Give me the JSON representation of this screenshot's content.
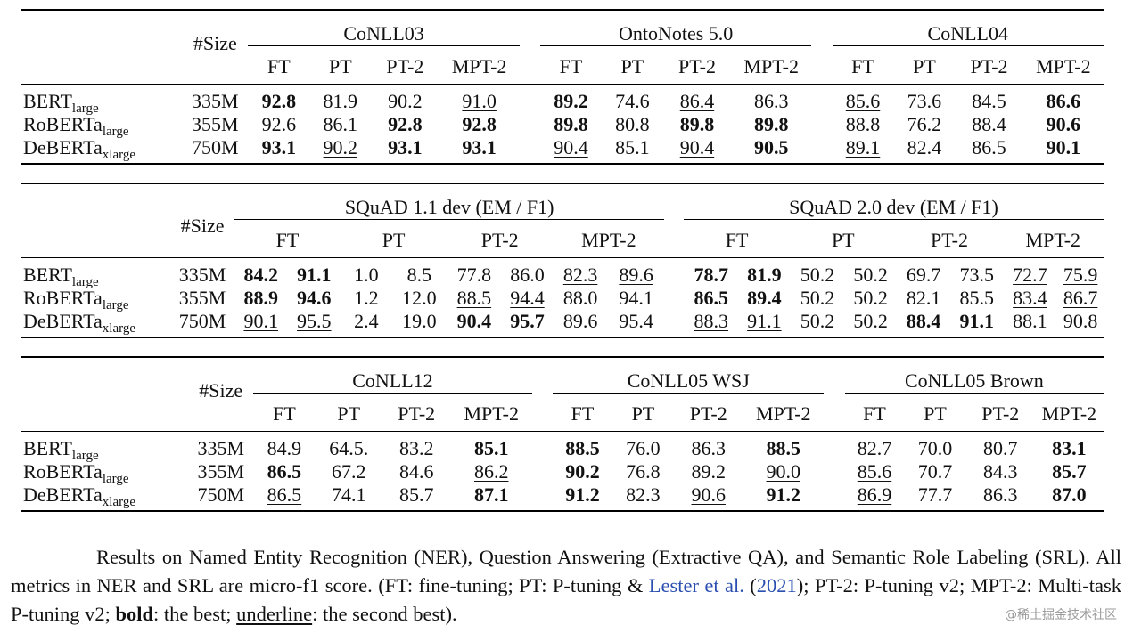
{
  "tables": [
    {
      "id": "ner",
      "size_header": "#Size",
      "groups": [
        "CoNLL03",
        "OntoNotes 5.0",
        "CoNLL04"
      ],
      "subheaders": [
        "FT",
        "PT",
        "PT-2",
        "MPT-2",
        "FT",
        "PT",
        "PT-2",
        "MPT-2",
        "FT",
        "PT",
        "PT-2",
        "MPT-2"
      ],
      "rows": [
        {
          "model": "BERT",
          "sub": "large",
          "size": "335M",
          "cells": [
            [
              "92.8",
              "b"
            ],
            [
              "81.9",
              ""
            ],
            [
              "90.2",
              ""
            ],
            [
              "91.0",
              "u"
            ],
            [
              "89.2",
              "b"
            ],
            [
              "74.6",
              ""
            ],
            [
              "86.4",
              "u"
            ],
            [
              "86.3",
              ""
            ],
            [
              "85.6",
              "u"
            ],
            [
              "73.6",
              ""
            ],
            [
              "84.5",
              ""
            ],
            [
              "86.6",
              "b"
            ]
          ]
        },
        {
          "model": "RoBERTa",
          "sub": "large",
          "size": "355M",
          "cells": [
            [
              "92.6",
              "u"
            ],
            [
              "86.1",
              ""
            ],
            [
              "92.8",
              "b"
            ],
            [
              "92.8",
              "b"
            ],
            [
              "89.8",
              "b"
            ],
            [
              "80.8",
              "u"
            ],
            [
              "89.8",
              "b"
            ],
            [
              "89.8",
              "b"
            ],
            [
              "88.8",
              "u"
            ],
            [
              "76.2",
              ""
            ],
            [
              "88.4",
              ""
            ],
            [
              "90.6",
              "b"
            ]
          ]
        },
        {
          "model": "DeBERTa",
          "sub": "xlarge",
          "size": "750M",
          "cells": [
            [
              "93.1",
              "b"
            ],
            [
              "90.2",
              "u"
            ],
            [
              "93.1",
              "b"
            ],
            [
              "93.1",
              "b"
            ],
            [
              "90.4",
              "u"
            ],
            [
              "85.1",
              ""
            ],
            [
              "90.4",
              "u"
            ],
            [
              "90.5",
              "b"
            ],
            [
              "89.1",
              "u"
            ],
            [
              "82.4",
              ""
            ],
            [
              "86.5",
              ""
            ],
            [
              "90.1",
              "b"
            ]
          ]
        }
      ]
    },
    {
      "id": "qa",
      "size_header": "#Size",
      "groups": [
        "SQuAD 1.1 dev (EM / F1)",
        "SQuAD 2.0 dev (EM / F1)"
      ],
      "subheaders": [
        "FT",
        "PT",
        "PT-2",
        "MPT-2",
        "FT",
        "PT",
        "PT-2",
        "MPT-2"
      ],
      "rows": [
        {
          "model": "BERT",
          "sub": "large",
          "size": "335M",
          "cells": [
            [
              "84.2",
              "b"
            ],
            [
              "91.1",
              "b"
            ],
            [
              "1.0",
              ""
            ],
            [
              "8.5",
              ""
            ],
            [
              "77.8",
              ""
            ],
            [
              "86.0",
              ""
            ],
            [
              "82.3",
              "u"
            ],
            [
              "89.6",
              "u"
            ],
            [
              "78.7",
              "b"
            ],
            [
              "81.9",
              "b"
            ],
            [
              "50.2",
              ""
            ],
            [
              "50.2",
              ""
            ],
            [
              "69.7",
              ""
            ],
            [
              "73.5",
              ""
            ],
            [
              "72.7",
              "u"
            ],
            [
              "75.9",
              "u"
            ]
          ]
        },
        {
          "model": "RoBERTa",
          "sub": "large",
          "size": "355M",
          "cells": [
            [
              "88.9",
              "b"
            ],
            [
              "94.6",
              "b"
            ],
            [
              "1.2",
              ""
            ],
            [
              "12.0",
              ""
            ],
            [
              "88.5",
              "u"
            ],
            [
              "94.4",
              "u"
            ],
            [
              "88.0",
              ""
            ],
            [
              "94.1",
              ""
            ],
            [
              "86.5",
              "b"
            ],
            [
              "89.4",
              "b"
            ],
            [
              "50.2",
              ""
            ],
            [
              "50.2",
              ""
            ],
            [
              "82.1",
              ""
            ],
            [
              "85.5",
              ""
            ],
            [
              "83.4",
              "u"
            ],
            [
              "86.7",
              "u"
            ]
          ]
        },
        {
          "model": "DeBERTa",
          "sub": "xlarge",
          "size": "750M",
          "cells": [
            [
              "90.1",
              "u"
            ],
            [
              "95.5",
              "u"
            ],
            [
              "2.4",
              ""
            ],
            [
              "19.0",
              ""
            ],
            [
              "90.4",
              "b"
            ],
            [
              "95.7",
              "b"
            ],
            [
              "89.6",
              ""
            ],
            [
              "95.4",
              ""
            ],
            [
              "88.3",
              "u"
            ],
            [
              "91.1",
              "u"
            ],
            [
              "50.2",
              ""
            ],
            [
              "50.2",
              ""
            ],
            [
              "88.4",
              "b"
            ],
            [
              "91.1",
              "b"
            ],
            [
              "88.1",
              ""
            ],
            [
              "90.8",
              ""
            ]
          ]
        }
      ]
    },
    {
      "id": "srl",
      "size_header": "#Size",
      "groups": [
        "CoNLL12",
        "CoNLL05 WSJ",
        "CoNLL05 Brown"
      ],
      "subheaders": [
        "FT",
        "PT",
        "PT-2",
        "MPT-2",
        "FT",
        "PT",
        "PT-2",
        "MPT-2",
        "FT",
        "PT",
        "PT-2",
        "MPT-2"
      ],
      "rows": [
        {
          "model": "BERT",
          "sub": "large",
          "size": "335M",
          "cells": [
            [
              "84.9",
              "u"
            ],
            [
              "64.5.",
              ""
            ],
            [
              "83.2",
              ""
            ],
            [
              "85.1",
              "b"
            ],
            [
              "88.5",
              "b"
            ],
            [
              "76.0",
              ""
            ],
            [
              "86.3",
              "u"
            ],
            [
              "88.5",
              "b"
            ],
            [
              "82.7",
              "u"
            ],
            [
              "70.0",
              ""
            ],
            [
              "80.7",
              ""
            ],
            [
              "83.1",
              "b"
            ]
          ]
        },
        {
          "model": "RoBERTa",
          "sub": "large",
          "size": "355M",
          "cells": [
            [
              "86.5",
              "b"
            ],
            [
              "67.2",
              ""
            ],
            [
              "84.6",
              ""
            ],
            [
              "86.2",
              "u"
            ],
            [
              "90.2",
              "b"
            ],
            [
              "76.8",
              ""
            ],
            [
              "89.2",
              ""
            ],
            [
              "90.0",
              "u"
            ],
            [
              "85.6",
              "u"
            ],
            [
              "70.7",
              ""
            ],
            [
              "84.3",
              ""
            ],
            [
              "85.7",
              "b"
            ]
          ]
        },
        {
          "model": "DeBERTa",
          "sub": "xlarge",
          "size": "750M",
          "cells": [
            [
              "86.5",
              "u"
            ],
            [
              "74.1",
              ""
            ],
            [
              "85.7",
              ""
            ],
            [
              "87.1",
              "b"
            ],
            [
              "91.2",
              "b"
            ],
            [
              "82.3",
              ""
            ],
            [
              "90.6",
              "u"
            ],
            [
              "91.2",
              "b"
            ],
            [
              "86.9",
              "u"
            ],
            [
              "77.7",
              ""
            ],
            [
              "86.3",
              ""
            ],
            [
              "87.0",
              "b"
            ]
          ]
        }
      ]
    }
  ],
  "caption": {
    "part1": "Results on Named Entity Recognition (NER), Question Answering (Extractive QA), and Semantic Role Labeling (SRL). All metrics in NER and SRL are micro-f1 score. (FT: fine-tuning; PT: P-tuning & ",
    "cite_name": "Lester et al.",
    "part2": " (",
    "cite_year": "2021",
    "part3": "); PT-2: P-tuning v2; MPT-2: Multi-task P-tuning v2; ",
    "bold_word": "bold",
    "part4": ": the best; ",
    "underline_word": "underline",
    "part5": ": the second best)."
  },
  "watermark": "@稀土掘金技术社区"
}
